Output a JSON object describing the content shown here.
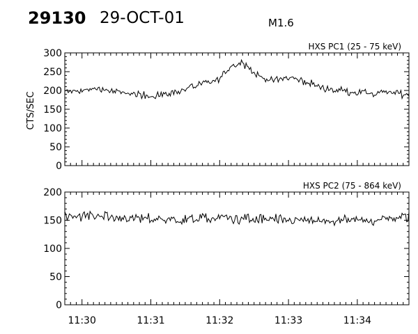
{
  "header": {
    "event_id": "29130",
    "date": "29-OCT-01",
    "flare_class": "M1.6"
  },
  "chart_data": [
    {
      "type": "line",
      "title": "HXS PC1 (25 - 75 keV)",
      "ylabel": "CTS/SEC",
      "xlabel": "",
      "ylim": [
        0,
        300
      ],
      "yticks": [
        "0",
        "50",
        "100",
        "150",
        "200",
        "250",
        "300"
      ],
      "xlim": [
        "11:29:45",
        "11:34:45"
      ],
      "xticks": [
        "11:30",
        "11:31",
        "11:32",
        "11:33",
        "11:34"
      ],
      "series": [
        {
          "x": [
            "11:29:45",
            "11:30:00",
            "11:30:15",
            "11:30:30",
            "11:30:45",
            "11:31:00",
            "11:31:15",
            "11:31:30",
            "11:31:45",
            "11:32:00",
            "11:32:10",
            "11:32:20",
            "11:32:30",
            "11:32:45",
            "11:33:00",
            "11:33:15",
            "11:33:30",
            "11:33:45",
            "11:34:00",
            "11:34:15",
            "11:34:30",
            "11:34:45"
          ],
          "values": [
            195,
            200,
            205,
            195,
            190,
            185,
            190,
            205,
            215,
            230,
            265,
            275,
            245,
            225,
            235,
            225,
            205,
            200,
            195,
            190,
            195,
            190
          ]
        }
      ]
    },
    {
      "type": "line",
      "title": "HXS PC2 (75 - 864 keV)",
      "ylabel": "",
      "xlabel": "",
      "ylim": [
        0,
        200
      ],
      "yticks": [
        "0",
        "50",
        "100",
        "150",
        "200"
      ],
      "xlim": [
        "11:29:45",
        "11:34:45"
      ],
      "xticks": [
        "11:30",
        "11:31",
        "11:32",
        "11:33",
        "11:34"
      ],
      "series": [
        {
          "x": [
            "11:29:45",
            "11:30:30",
            "11:31:15",
            "11:32:00",
            "11:32:45",
            "11:33:30",
            "11:34:15",
            "11:34:45"
          ],
          "values": [
            160,
            155,
            150,
            155,
            150,
            148,
            150,
            155
          ]
        }
      ]
    }
  ]
}
